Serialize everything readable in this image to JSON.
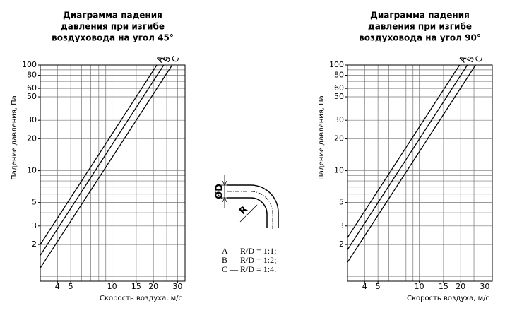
{
  "chart_data": [
    {
      "type": "line",
      "title": [
        "Диаграмма падения",
        "давления при изгибе",
        "воздуховода на угол 45°"
      ],
      "x_label": "Скорость воздуха, м/с",
      "y_label": "Падение давления, Па",
      "xscale": "log",
      "yscale": "log",
      "xlim": [
        3,
        34
      ],
      "ylim": [
        0.9,
        100
      ],
      "xticks": [
        4,
        5,
        10,
        15,
        20,
        30
      ],
      "yticks": [
        2,
        3,
        5,
        10,
        20,
        30,
        50,
        60,
        80,
        100
      ],
      "xgrid": [
        4,
        5,
        6,
        7,
        8,
        9,
        10,
        15,
        20,
        25,
        30
      ],
      "ygrid": [
        1,
        2,
        3,
        4,
        5,
        6,
        7,
        8,
        9,
        10,
        20,
        30,
        40,
        50,
        60,
        70,
        80,
        90,
        100
      ],
      "series": [
        {
          "name": "A",
          "color": "#000000",
          "x": [
            3,
            21.2
          ],
          "values": [
            2,
            100
          ]
        },
        {
          "name": "B",
          "color": "#000000",
          "x": [
            3,
            23.8
          ],
          "values": [
            1.58,
            100
          ]
        },
        {
          "name": "C",
          "color": "#000000",
          "x": [
            3,
            27.4
          ],
          "values": [
            1.2,
            100
          ]
        }
      ]
    },
    {
      "type": "line",
      "title": [
        "Диаграмма падения",
        "давления при изгибе",
        "воздуховода на угол 90°"
      ],
      "x_label": "Скорость воздуха, м/с",
      "y_label": "Падение давления, Па",
      "xscale": "log",
      "yscale": "log",
      "xlim": [
        3,
        34
      ],
      "ylim": [
        0.9,
        100
      ],
      "xticks": [
        4,
        5,
        10,
        15,
        20,
        30
      ],
      "yticks": [
        2,
        3,
        5,
        10,
        20,
        30,
        50,
        60,
        80,
        100
      ],
      "xgrid": [
        4,
        5,
        6,
        7,
        8,
        9,
        10,
        15,
        20,
        25,
        30
      ],
      "ygrid": [
        1,
        2,
        3,
        4,
        5,
        6,
        7,
        8,
        9,
        10,
        20,
        30,
        40,
        50,
        60,
        70,
        80,
        90,
        100
      ],
      "series": [
        {
          "name": "A",
          "color": "#000000",
          "x": [
            3,
            19.65
          ],
          "values": [
            2.33,
            100
          ]
        },
        {
          "name": "B",
          "color": "#000000",
          "x": [
            3,
            22.4
          ],
          "values": [
            1.79,
            100
          ]
        },
        {
          "name": "C",
          "color": "#000000",
          "x": [
            3,
            25.7
          ],
          "values": [
            1.36,
            100
          ]
        }
      ]
    }
  ],
  "diagram": {
    "labels": [
      "ØD",
      "R"
    ],
    "legend": [
      "A — R/D = 1:1;",
      "B — R/D = 1:2;",
      "C — R/D = 1:4."
    ]
  }
}
